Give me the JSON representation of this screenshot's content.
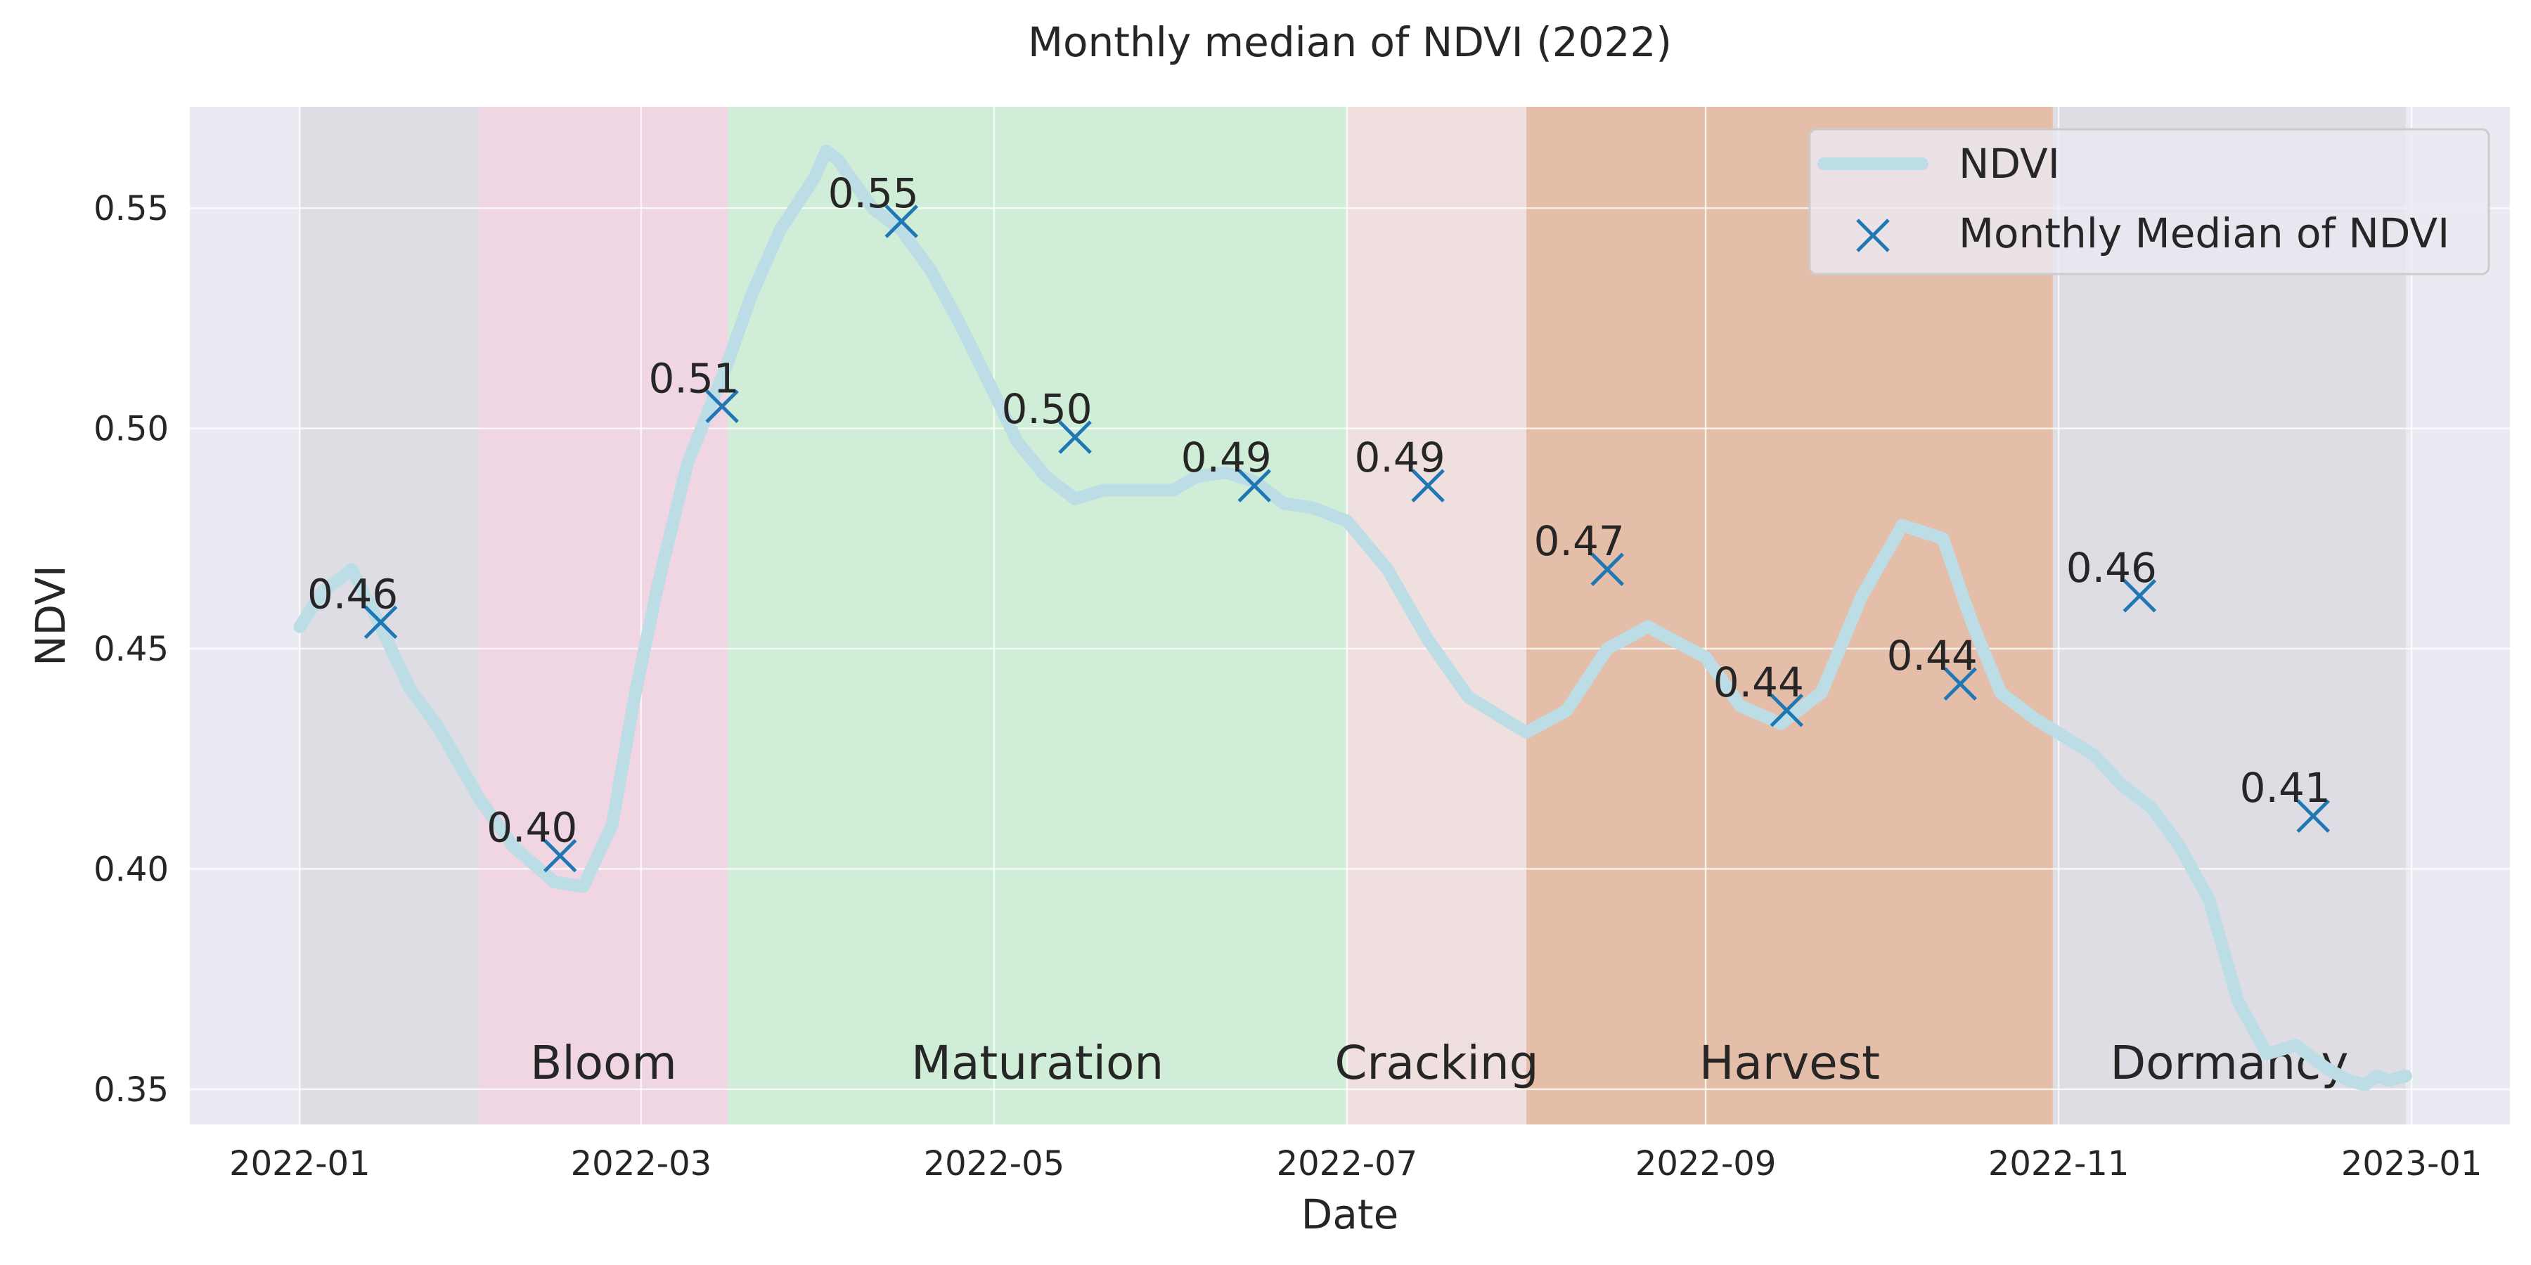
{
  "chart_data": {
    "type": "line",
    "title": "Monthly median of NDVI (2022)",
    "xlabel": "Date",
    "ylabel": "NDVI",
    "xlim": [
      "2021-12-13",
      "2023-01-18"
    ],
    "ylim": [
      0.342,
      0.573
    ],
    "grid": true,
    "legend_position": "top-right",
    "x_ticks": [
      "2022-01",
      "2022-03",
      "2022-05",
      "2022-07",
      "2022-09",
      "2022-11",
      "2023-01"
    ],
    "y_ticks": [
      0.35,
      0.4,
      0.45,
      0.5,
      0.55
    ],
    "y_tick_labels": [
      "0.35",
      "0.40",
      "0.45",
      "0.50",
      "0.55"
    ],
    "phases": [
      {
        "label": "",
        "start": "2022-01-01",
        "end": "2022-02-01",
        "color": "#dfdde4"
      },
      {
        "label": "Bloom",
        "start": "2022-02-01",
        "end": "2022-03-16",
        "color": "#efd6e2"
      },
      {
        "label": "Maturation",
        "start": "2022-03-16",
        "end": "2022-07-01",
        "color": "#d0eed7"
      },
      {
        "label": "Cracking",
        "start": "2022-07-01",
        "end": "2022-08-01",
        "color": "#efe0df"
      },
      {
        "label": "Harvest",
        "start": "2022-08-01",
        "end": "2022-10-31",
        "color": "#e4bea9"
      },
      {
        "label": "Dormancy",
        "start": "2022-10-31",
        "end": "2022-12-31",
        "color": "#dfdde4"
      }
    ],
    "series": [
      {
        "name": "NDVI",
        "color": "#bcdde6",
        "x": [
          "2022-01-01",
          "2022-01-05",
          "2022-01-10",
          "2022-01-15",
          "2022-01-20",
          "2022-01-25",
          "2022-02-01",
          "2022-02-07",
          "2022-02-14",
          "2022-02-19",
          "2022-02-24",
          "2022-02-28",
          "2022-03-04",
          "2022-03-09",
          "2022-03-16",
          "2022-03-20",
          "2022-03-25",
          "2022-03-31",
          "2022-04-02",
          "2022-04-04",
          "2022-04-10",
          "2022-04-15",
          "2022-04-20",
          "2022-04-25",
          "2022-05-01",
          "2022-05-05",
          "2022-05-10",
          "2022-05-15",
          "2022-05-20",
          "2022-05-25",
          "2022-06-01",
          "2022-06-05",
          "2022-06-10",
          "2022-06-15",
          "2022-06-20",
          "2022-06-25",
          "2022-07-01",
          "2022-07-08",
          "2022-07-15",
          "2022-07-22",
          "2022-08-01",
          "2022-08-08",
          "2022-08-15",
          "2022-08-22",
          "2022-09-01",
          "2022-09-07",
          "2022-09-14",
          "2022-09-21",
          "2022-09-28",
          "2022-10-05",
          "2022-10-12",
          "2022-10-17",
          "2022-10-22",
          "2022-10-28",
          "2022-11-02",
          "2022-11-07",
          "2022-11-12",
          "2022-11-17",
          "2022-11-22",
          "2022-11-27",
          "2022-12-02",
          "2022-12-07",
          "2022-12-12",
          "2022-12-17",
          "2022-12-21",
          "2022-12-24",
          "2022-12-26",
          "2022-12-28",
          "2022-12-31"
        ],
        "values": [
          0.455,
          0.463,
          0.468,
          0.455,
          0.441,
          0.432,
          0.416,
          0.405,
          0.397,
          0.396,
          0.41,
          0.44,
          0.465,
          0.492,
          0.515,
          0.53,
          0.545,
          0.557,
          0.563,
          0.561,
          0.55,
          0.545,
          0.536,
          0.524,
          0.508,
          0.497,
          0.489,
          0.484,
          0.486,
          0.486,
          0.486,
          0.489,
          0.49,
          0.488,
          0.483,
          0.482,
          0.479,
          0.468,
          0.452,
          0.439,
          0.431,
          0.436,
          0.45,
          0.455,
          0.448,
          0.437,
          0.433,
          0.44,
          0.462,
          0.478,
          0.475,
          0.456,
          0.44,
          0.434,
          0.43,
          0.426,
          0.419,
          0.414,
          0.405,
          0.393,
          0.37,
          0.358,
          0.36,
          0.355,
          0.352,
          0.351,
          0.353,
          0.352,
          0.353
        ]
      },
      {
        "name": "Monthly Median of NDVI",
        "color": "#1f77b4",
        "x": [
          "2022-01-15",
          "2022-02-15",
          "2022-03-15",
          "2022-04-15",
          "2022-05-15",
          "2022-06-15",
          "2022-07-15",
          "2022-08-15",
          "2022-09-15",
          "2022-10-15",
          "2022-11-15",
          "2022-12-15"
        ],
        "values": [
          0.456,
          0.403,
          0.505,
          0.547,
          0.498,
          0.487,
          0.487,
          0.468,
          0.436,
          0.442,
          0.462,
          0.412
        ],
        "labels": [
          "0.46",
          "0.40",
          "0.51",
          "0.55",
          "0.50",
          "0.49",
          "0.49",
          "0.47",
          "0.44",
          "0.44",
          "0.46",
          "0.41"
        ]
      }
    ]
  }
}
